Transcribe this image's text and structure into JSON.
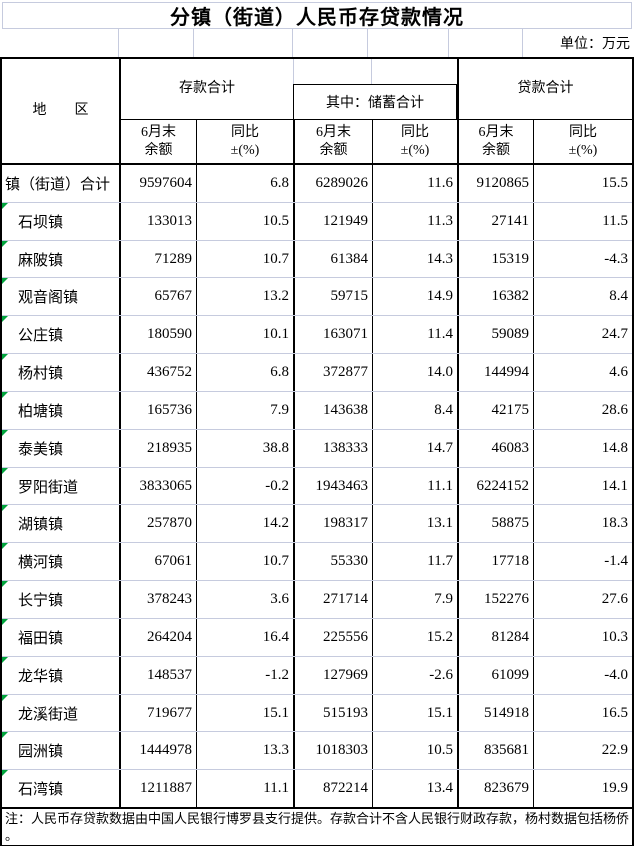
{
  "title": "分镇（街道）人民币存贷款情况",
  "unit_label": "单位：万元",
  "colors": {
    "gridline": "#c6cbde",
    "table_border": "#000000",
    "flag_green": "#00a33c"
  },
  "table": {
    "region_header": "地　　区",
    "groups": {
      "deposit": "存款合计",
      "savings": "其中：储蓄合计",
      "loan": "贷款合计"
    },
    "subheaders": {
      "balance": "6月末\n余额",
      "yoy": "同比\n±(%)"
    },
    "rows": [
      {
        "region": "镇（街道）合计",
        "indent": false,
        "flag": false,
        "deposit_balance": "9597604",
        "deposit_yoy": "6.8",
        "savings_balance": "6289026",
        "savings_yoy": "11.6",
        "loan_balance": "9120865",
        "loan_yoy": "15.5"
      },
      {
        "region": "石坝镇",
        "indent": true,
        "flag": true,
        "deposit_balance": "133013",
        "deposit_yoy": "10.5",
        "savings_balance": "121949",
        "savings_yoy": "11.3",
        "loan_balance": "27141",
        "loan_yoy": "11.5"
      },
      {
        "region": "麻陂镇",
        "indent": true,
        "flag": true,
        "deposit_balance": "71289",
        "deposit_yoy": "10.7",
        "savings_balance": "61384",
        "savings_yoy": "14.3",
        "loan_balance": "15319",
        "loan_yoy": "-4.3"
      },
      {
        "region": "观音阁镇",
        "indent": true,
        "flag": true,
        "deposit_balance": "65767",
        "deposit_yoy": "13.2",
        "savings_balance": "59715",
        "savings_yoy": "14.9",
        "loan_balance": "16382",
        "loan_yoy": "8.4"
      },
      {
        "region": "公庄镇",
        "indent": true,
        "flag": true,
        "deposit_balance": "180590",
        "deposit_yoy": "10.1",
        "savings_balance": "163071",
        "savings_yoy": "11.4",
        "loan_balance": "59089",
        "loan_yoy": "24.7"
      },
      {
        "region": "杨村镇",
        "indent": true,
        "flag": true,
        "deposit_balance": "436752",
        "deposit_yoy": "6.8",
        "savings_balance": "372877",
        "savings_yoy": "14.0",
        "loan_balance": "144994",
        "loan_yoy": "4.6"
      },
      {
        "region": "柏塘镇",
        "indent": true,
        "flag": true,
        "deposit_balance": "165736",
        "deposit_yoy": "7.9",
        "savings_balance": "143638",
        "savings_yoy": "8.4",
        "loan_balance": "42175",
        "loan_yoy": "28.6"
      },
      {
        "region": "泰美镇",
        "indent": true,
        "flag": true,
        "deposit_balance": "218935",
        "deposit_yoy": "38.8",
        "savings_balance": "138333",
        "savings_yoy": "14.7",
        "loan_balance": "46083",
        "loan_yoy": "14.8"
      },
      {
        "region": "罗阳街道",
        "indent": true,
        "flag": true,
        "deposit_balance": "3833065",
        "deposit_yoy": "-0.2",
        "savings_balance": "1943463",
        "savings_yoy": "11.1",
        "loan_balance": "6224152",
        "loan_yoy": "14.1"
      },
      {
        "region": "湖镇镇",
        "indent": true,
        "flag": true,
        "deposit_balance": "257870",
        "deposit_yoy": "14.2",
        "savings_balance": "198317",
        "savings_yoy": "13.1",
        "loan_balance": "58875",
        "loan_yoy": "18.3"
      },
      {
        "region": "横河镇",
        "indent": true,
        "flag": true,
        "deposit_balance": "67061",
        "deposit_yoy": "10.7",
        "savings_balance": "55330",
        "savings_yoy": "11.7",
        "loan_balance": "17718",
        "loan_yoy": "-1.4"
      },
      {
        "region": "长宁镇",
        "indent": true,
        "flag": true,
        "deposit_balance": "378243",
        "deposit_yoy": "3.6",
        "savings_balance": "271714",
        "savings_yoy": "7.9",
        "loan_balance": "152276",
        "loan_yoy": "27.6"
      },
      {
        "region": "福田镇",
        "indent": true,
        "flag": true,
        "deposit_balance": "264204",
        "deposit_yoy": "16.4",
        "savings_balance": "225556",
        "savings_yoy": "15.2",
        "loan_balance": "81284",
        "loan_yoy": "10.3"
      },
      {
        "region": "龙华镇",
        "indent": true,
        "flag": true,
        "deposit_balance": "148537",
        "deposit_yoy": "-1.2",
        "savings_balance": "127969",
        "savings_yoy": "-2.6",
        "loan_balance": "61099",
        "loan_yoy": "-4.0"
      },
      {
        "region": "龙溪街道",
        "indent": true,
        "flag": true,
        "deposit_balance": "719677",
        "deposit_yoy": "15.1",
        "savings_balance": "515193",
        "savings_yoy": "15.1",
        "loan_balance": "514918",
        "loan_yoy": "16.5"
      },
      {
        "region": "园洲镇",
        "indent": true,
        "flag": true,
        "deposit_balance": "1444978",
        "deposit_yoy": "13.3",
        "savings_balance": "1018303",
        "savings_yoy": "10.5",
        "loan_balance": "835681",
        "loan_yoy": "22.9"
      },
      {
        "region": "石湾镇",
        "indent": true,
        "flag": true,
        "deposit_balance": "1211887",
        "deposit_yoy": "11.1",
        "savings_balance": "872214",
        "savings_yoy": "13.4",
        "loan_balance": "823679",
        "loan_yoy": "19.9"
      }
    ]
  },
  "note": {
    "line1": "注：人民币存贷款数据由中国人民银行博罗县支行提供。存款合计不含人民银行财政存款，杨村数据包括杨侨",
    "line2": "。"
  }
}
